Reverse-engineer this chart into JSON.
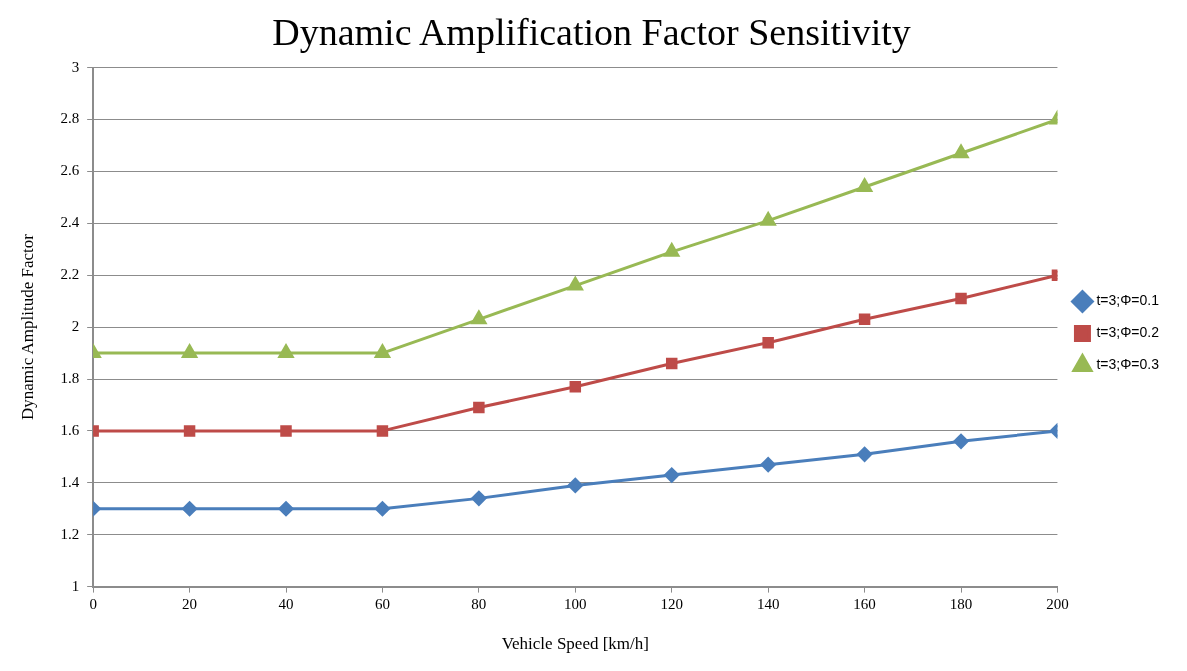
{
  "chart_data": {
    "type": "line",
    "title": "Dynamic Amplification Factor Sensitivity",
    "xlabel": "Vehicle Speed [km/h]",
    "ylabel": "Dynamic Amplitude Factor",
    "x": [
      0,
      20,
      40,
      60,
      80,
      100,
      120,
      140,
      160,
      180,
      200
    ],
    "xlim": [
      0,
      200
    ],
    "xticks": [
      0,
      20,
      40,
      60,
      80,
      100,
      120,
      140,
      160,
      180,
      200
    ],
    "ylim": [
      1,
      3
    ],
    "yticks": [
      1,
      1.2,
      1.4,
      1.6,
      1.8,
      2,
      2.2,
      2.4,
      2.6,
      2.8,
      3
    ],
    "grid": "y",
    "legend": "right",
    "series": [
      {
        "name": "t=3;Φ=0.1",
        "color": "#4a7ebb",
        "marker": "diamond",
        "values": [
          1.3,
          1.3,
          1.3,
          1.3,
          1.34,
          1.39,
          1.43,
          1.47,
          1.51,
          1.56,
          1.6
        ]
      },
      {
        "name": "t=3;Φ=0.2",
        "color": "#be4b48",
        "marker": "square",
        "values": [
          1.6,
          1.6,
          1.6,
          1.6,
          1.69,
          1.77,
          1.86,
          1.94,
          2.03,
          2.11,
          2.2
        ]
      },
      {
        "name": "t=3;Φ=0.3",
        "color": "#98b954",
        "marker": "triangle",
        "values": [
          1.9,
          1.9,
          1.9,
          1.9,
          2.03,
          2.16,
          2.29,
          2.41,
          2.54,
          2.67,
          2.8
        ]
      }
    ]
  }
}
